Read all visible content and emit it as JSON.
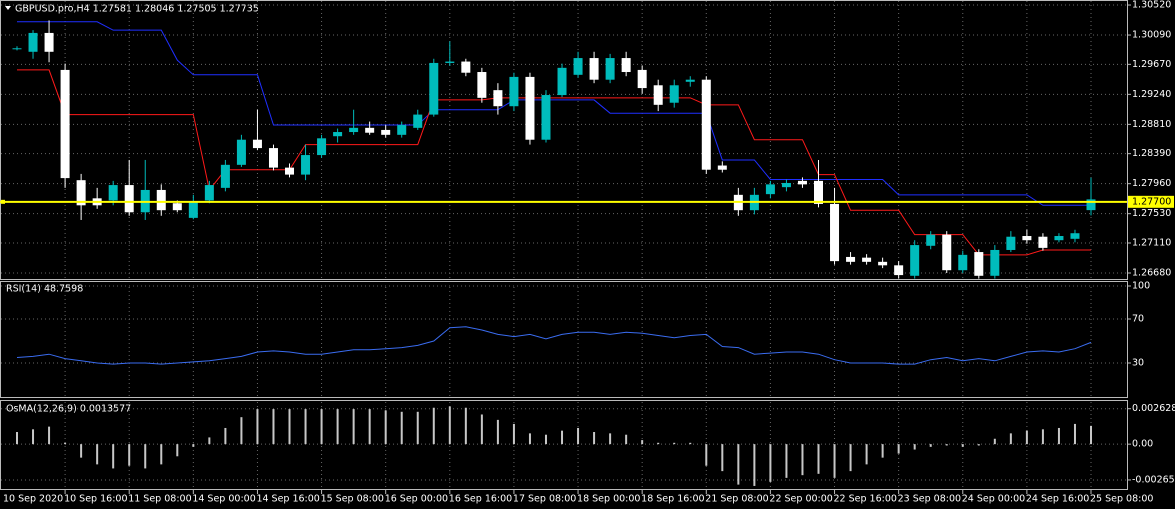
{
  "chart_data": [
    {
      "type": "candlestick",
      "title": "GBPUSD.pro,H4  1.27581 1.28046 1.27505 1.27735",
      "categories": [
        "10 Sep 2020",
        null,
        null,
        "10 Sep 16:00",
        null,
        null,
        null,
        "11 Sep 08:00",
        null,
        null,
        null,
        "14 Sep 00:00",
        null,
        null,
        null,
        "14 Sep 16:00",
        null,
        null,
        null,
        "15 Sep 08:00",
        null,
        null,
        null,
        "16 Sep 00:00",
        null,
        null,
        null,
        "16 Sep 16:00",
        null,
        null,
        null,
        "17 Sep 08:00",
        null,
        null,
        null,
        "18 Sep 00:00",
        null,
        null,
        null,
        "18 Sep 16:00",
        null,
        null,
        null,
        "21 Sep 08:00",
        null,
        null,
        null,
        "22 Sep 00:00",
        null,
        null,
        null,
        "22 Sep 16:00",
        null,
        null,
        null,
        "23 Sep 08:00",
        null,
        null,
        null,
        "24 Sep 00:00",
        null,
        null,
        null,
        "24 Sep 16:00",
        null,
        null,
        null,
        "25 Sep 08:00"
      ],
      "open": [
        1.299,
        1.2985,
        1.3012,
        1.2959,
        1.2801,
        1.2775,
        1.2772,
        1.2794,
        1.2755,
        1.2787,
        1.2768,
        1.2747,
        1.2772,
        1.279,
        1.2823,
        1.2859,
        1.2847,
        1.2819,
        1.2809,
        1.2837,
        1.2864,
        1.287,
        1.2876,
        1.2873,
        1.2866,
        1.2876,
        1.2895,
        1.2969,
        1.2971,
        1.2956,
        1.293,
        1.2907,
        1.2949,
        1.2859,
        1.2923,
        1.2952,
        1.2976,
        1.2945,
        1.2976,
        1.2959,
        1.2937,
        1.2912,
        1.2942,
        1.2945,
        1.2822,
        1.278,
        1.2758,
        1.2781,
        1.2791,
        1.28,
        1.28,
        1.2767,
        1.2691,
        1.269,
        1.2684,
        1.2679,
        1.2664,
        1.2707,
        1.2723,
        1.2672,
        1.2698,
        1.2664,
        1.2701,
        1.2721,
        1.272,
        1.2715,
        1.2717,
        1.27581
      ],
      "high": [
        1.2993,
        1.3016,
        1.303,
        1.2968,
        1.281,
        1.279,
        1.28,
        1.283,
        1.283,
        1.2795,
        1.2772,
        1.278,
        1.28,
        1.283,
        1.2866,
        1.2902,
        1.2852,
        1.2825,
        1.2852,
        1.2866,
        1.2875,
        1.2902,
        1.2885,
        1.288,
        1.2885,
        1.2902,
        1.2975,
        1.3,
        1.2975,
        1.2962,
        1.294,
        1.2955,
        1.2955,
        1.293,
        1.2968,
        1.2985,
        1.2985,
        1.2982,
        1.2985,
        1.2965,
        1.2945,
        1.2945,
        1.295,
        1.295,
        1.2828,
        1.279,
        1.279,
        1.28,
        1.2802,
        1.2805,
        1.283,
        1.279,
        1.2698,
        1.2695,
        1.269,
        1.2685,
        1.2715,
        1.2728,
        1.2728,
        1.27,
        1.2702,
        1.2708,
        1.2728,
        1.273,
        1.2725,
        1.2725,
        1.273,
        1.28046
      ],
      "low": [
        1.2987,
        1.2975,
        1.297,
        1.279,
        1.2744,
        1.276,
        1.2765,
        1.275,
        1.2744,
        1.275,
        1.2755,
        1.2745,
        1.2768,
        1.2785,
        1.282,
        1.2844,
        1.2815,
        1.2805,
        1.2801,
        1.2833,
        1.2855,
        1.2866,
        1.2866,
        1.2862,
        1.2862,
        1.2873,
        1.2892,
        1.2965,
        1.295,
        1.2912,
        1.2895,
        1.29,
        1.2852,
        1.2855,
        1.292,
        1.2948,
        1.294,
        1.294,
        1.295,
        1.2925,
        1.29,
        1.2905,
        1.2935,
        1.281,
        1.2812,
        1.275,
        1.2752,
        1.2775,
        1.2785,
        1.279,
        1.2762,
        1.268,
        1.268,
        1.268,
        1.2675,
        1.266,
        1.266,
        1.2702,
        1.2668,
        1.2668,
        1.266,
        1.266,
        1.2698,
        1.271,
        1.27,
        1.2712,
        1.2712,
        1.27505
      ],
      "close": [
        1.299,
        1.3012,
        1.2985,
        1.2804,
        1.2765,
        1.2765,
        1.2794,
        1.2755,
        1.2787,
        1.2758,
        1.2758,
        1.277,
        1.2794,
        1.2823,
        1.2859,
        1.2847,
        1.2819,
        1.2809,
        1.2837,
        1.2861,
        1.287,
        1.2876,
        1.2869,
        1.2866,
        1.288,
        1.2895,
        1.2969,
        1.2971,
        1.2955,
        1.2919,
        1.2907,
        1.2949,
        1.2859,
        1.2923,
        1.2962,
        1.2976,
        1.2945,
        1.2976,
        1.2956,
        1.2933,
        1.2909,
        1.2937,
        1.2945,
        1.2816,
        1.2816,
        1.2758,
        1.278,
        1.2795,
        1.2797,
        1.2795,
        1.2767,
        1.2685,
        1.2684,
        1.2684,
        1.2679,
        1.2665,
        1.2708,
        1.2723,
        1.2672,
        1.2694,
        1.2664,
        1.2701,
        1.272,
        1.2715,
        1.2704,
        1.2721,
        1.2725,
        1.27735
      ],
      "up_color": "#00bcbc",
      "down_color": "#ffffff",
      "series": [
        {
          "color": "#1f2fff",
          "values": [
            1.3028,
            1.3028,
            1.3028,
            1.3028,
            1.3028,
            1.3028,
            1.3016,
            1.3016,
            1.3016,
            1.3016,
            1.2973,
            1.2952,
            1.2952,
            1.2952,
            1.2952,
            1.2952,
            1.288,
            1.288,
            1.288,
            1.288,
            1.288,
            1.288,
            1.288,
            1.288,
            1.288,
            1.288,
            1.2902,
            1.2902,
            1.2902,
            1.2902,
            1.2902,
            1.2916,
            1.2916,
            1.2916,
            1.2916,
            1.2916,
            1.2916,
            1.2897,
            1.2897,
            1.2897,
            1.2897,
            1.2897,
            1.2897,
            1.2897,
            1.283,
            1.283,
            1.283,
            1.2802,
            1.2802,
            1.2802,
            1.2802,
            1.2802,
            1.2802,
            1.2802,
            1.2802,
            1.278,
            1.278,
            1.278,
            1.278,
            1.278,
            1.278,
            1.278,
            1.278,
            1.278,
            1.2765,
            1.2765,
            1.2765,
            1.2765
          ]
        },
        {
          "color": "#ff1a1a",
          "values": [
            1.2959,
            1.2959,
            1.2959,
            1.2895,
            1.2895,
            1.2895,
            1.2895,
            1.2895,
            1.2895,
            1.2895,
            1.2895,
            1.2895,
            1.2787,
            1.2816,
            1.2816,
            1.2816,
            1.2816,
            1.2816,
            1.2852,
            1.2852,
            1.2852,
            1.2852,
            1.2852,
            1.2852,
            1.2852,
            1.2852,
            1.2916,
            1.2916,
            1.2916,
            1.2916,
            1.2919,
            1.2919,
            1.2919,
            1.2919,
            1.2919,
            1.2919,
            1.2919,
            1.2919,
            1.2919,
            1.2919,
            1.2919,
            1.2919,
            1.2919,
            1.2909,
            1.2909,
            1.2909,
            1.2859,
            1.2859,
            1.2859,
            1.2859,
            1.2809,
            1.2809,
            1.2758,
            1.2758,
            1.2758,
            1.2758,
            1.2723,
            1.2723,
            1.2723,
            1.2723,
            1.2694,
            1.2694,
            1.2694,
            1.2694,
            1.2701,
            1.2701,
            1.2701,
            1.2701
          ]
        }
      ],
      "current_price": {
        "value": 1.277,
        "label": "1.27700",
        "color": "#ffff00"
      },
      "ylim": [
        1.26594,
        1.30592
      ],
      "yticks": [
        {
          "value": 1.3052,
          "label": "1.30520"
        },
        {
          "value": 1.3009,
          "label": "1.30090"
        },
        {
          "value": 1.2967,
          "label": "1.29670"
        },
        {
          "value": 1.2924,
          "label": "1.29240"
        },
        {
          "value": 1.2881,
          "label": "1.28810"
        },
        {
          "value": 1.2839,
          "label": "1.28390"
        },
        {
          "value": 1.2796,
          "label": "1.27960"
        },
        {
          "value": 1.2753,
          "label": "1.27530"
        },
        {
          "value": 1.2711,
          "label": "1.27110"
        },
        {
          "value": 1.2668,
          "label": "1.26680"
        }
      ],
      "grid": true
    },
    {
      "type": "line",
      "title": "RSI(14) 48.7598",
      "color": "#3a6cf0",
      "values": [
        35,
        36,
        38,
        34,
        32,
        30,
        29,
        30,
        30,
        29,
        30,
        31,
        32,
        34,
        36,
        40,
        41,
        40,
        38,
        38,
        40,
        42,
        42,
        43,
        44,
        46,
        50,
        62,
        63,
        60,
        56,
        54,
        56,
        52,
        56,
        58,
        58,
        56,
        58,
        57,
        55,
        53,
        55,
        56,
        45,
        44,
        38,
        39,
        40,
        40,
        38,
        33,
        30,
        30,
        30,
        29,
        29,
        33,
        35,
        32,
        34,
        32,
        36,
        40,
        41,
        40,
        43,
        48.7598
      ],
      "ylim": [
        0,
        100
      ],
      "yticks": [
        100,
        70,
        30
      ],
      "grid": true
    },
    {
      "type": "bar",
      "title": "OsMA(12,26,9) 0.0013577",
      "color": "#c8c8c8",
      "values": [
        0.0009,
        0.0011,
        0.0013,
        0.0001,
        -0.001,
        -0.0015,
        -0.0018,
        -0.0016,
        -0.0018,
        -0.0015,
        -0.0009,
        -0.0002,
        0.0005,
        0.0012,
        0.002,
        0.0026,
        0.0026,
        0.0026,
        0.0026,
        0.0026,
        0.0026,
        0.0026,
        0.0026,
        0.0025,
        0.0024,
        0.0024,
        0.0027,
        0.0028,
        0.0027,
        0.0022,
        0.0018,
        0.0015,
        0.0008,
        0.0007,
        0.001,
        0.0012,
        0.0009,
        0.0008,
        0.0007,
        0.0003,
        0.0001,
        0.0001,
        0.0001,
        -0.0016,
        -0.002,
        -0.003,
        -0.0031,
        -0.0028,
        -0.0025,
        -0.0023,
        -0.0022,
        -0.0025,
        -0.002,
        -0.0015,
        -0.001,
        -0.0007,
        -0.0004,
        -0.0002,
        -0.0001,
        -0.0002,
        -0.0001,
        0.0004,
        0.0008,
        0.001,
        0.0011,
        0.0012,
        0.0015,
        0.0013577
      ],
      "ylim": [
        -0.0034,
        0.0032
      ],
      "yticks": [
        0.0026282,
        {
          "value": 0,
          "label": "0.00"
        },
        -0.0026546
      ],
      "grid": true
    }
  ]
}
